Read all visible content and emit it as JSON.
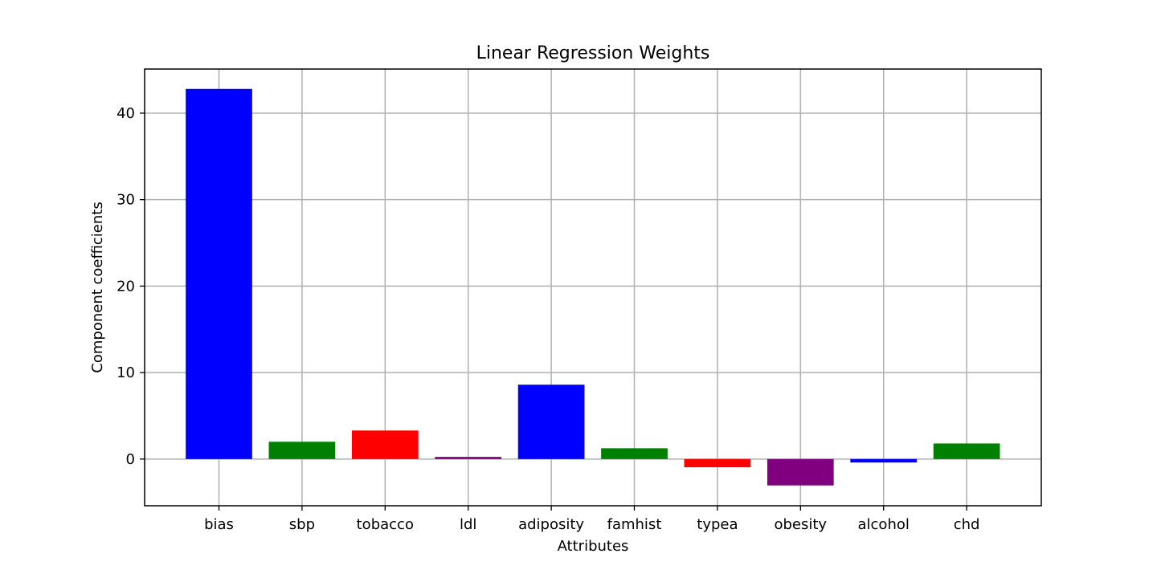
{
  "chart_data": {
    "type": "bar",
    "title": "Linear Regression Weights",
    "xlabel": "Attributes",
    "ylabel": "Component coefficients",
    "categories": [
      "bias",
      "sbp",
      "tobacco",
      "ldl",
      "adiposity",
      "famhist",
      "typea",
      "obesity",
      "alcohol",
      "chd"
    ],
    "values": [
      42.8,
      2.0,
      3.3,
      0.25,
      8.6,
      1.25,
      -0.95,
      -3.05,
      -0.4,
      1.8
    ],
    "colors": [
      "#0000ff",
      "#008000",
      "#ff0000",
      "#800080",
      "#0000ff",
      "#008000",
      "#ff0000",
      "#800080",
      "#0000ff",
      "#008000"
    ],
    "ylim": [
      -5.4,
      45.1
    ],
    "yticks": [
      0,
      10,
      20,
      30,
      40
    ],
    "grid": true
  }
}
